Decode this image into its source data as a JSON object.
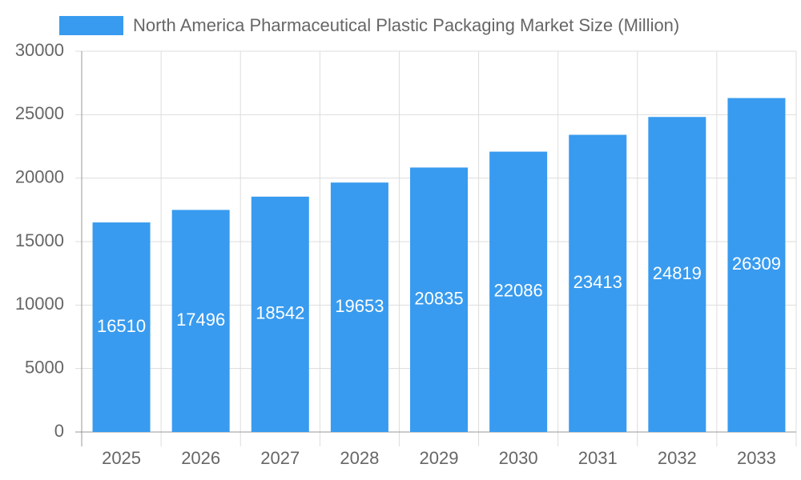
{
  "chart_data": {
    "type": "bar",
    "categories": [
      "2025",
      "2026",
      "2027",
      "2028",
      "2029",
      "2030",
      "2031",
      "2032",
      "2033"
    ],
    "series": [
      {
        "name": "North America Pharmaceutical Plastic Packaging Market Size (Million)",
        "color": "#389bef",
        "values": [
          16510,
          17496,
          18542,
          19653,
          20835,
          22086,
          23413,
          24819,
          26309
        ]
      }
    ],
    "ylim": [
      0,
      30000
    ],
    "yticks": [
      0,
      5000,
      10000,
      15000,
      20000,
      25000,
      30000
    ],
    "grid": true,
    "legend": "top"
  }
}
